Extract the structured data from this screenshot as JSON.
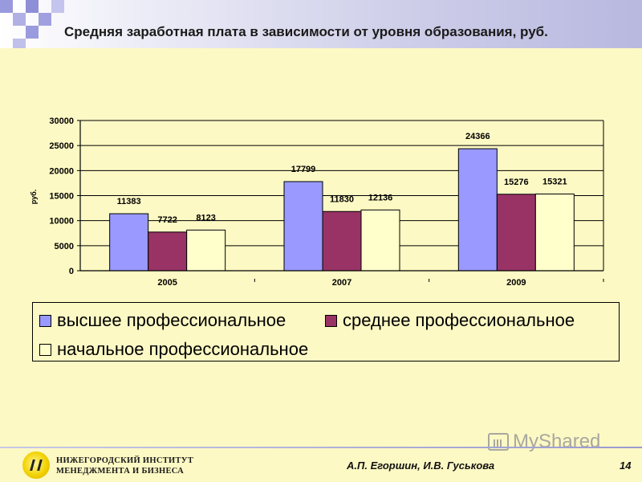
{
  "header": {
    "title": "Средняя заработная плата в зависимости от уровня образования, руб."
  },
  "chart_data": {
    "type": "bar",
    "categories": [
      "2005",
      "2007",
      "2009"
    ],
    "ylabel": "руб.",
    "ylim": [
      0,
      30000
    ],
    "yticks": [
      0,
      5000,
      10000,
      15000,
      20000,
      25000,
      30000
    ],
    "grid": true,
    "legend_position": "bottom",
    "series": [
      {
        "name": "высшее профессиональное",
        "color": "#9999ff",
        "values": [
          11383,
          17799,
          24366
        ]
      },
      {
        "name": "среднее профессиональное",
        "color": "#993366",
        "values": [
          7722,
          11830,
          15276
        ]
      },
      {
        "name": "начальное профессиональное",
        "color": "#ffffcc",
        "values": [
          8123,
          12136,
          15321
        ]
      }
    ]
  },
  "footer": {
    "institute_line1": "НИЖЕГОРОДСКИЙ ИНСТИТУТ",
    "institute_line2": "МЕНЕДЖМЕНТА И БИЗНЕСА",
    "authors": "А.П. Егоршин, И.В. Гуськова",
    "page_number": "14",
    "watermark": "MyShared"
  }
}
